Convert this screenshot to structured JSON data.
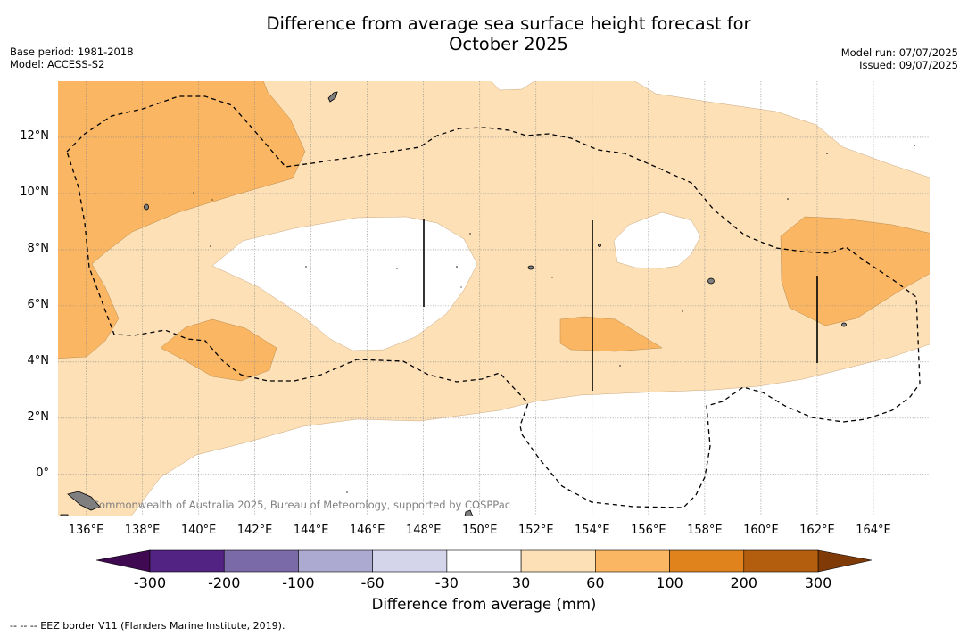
{
  "title_line1": "Difference from average sea surface height forecast for",
  "title_line2": "October 2025",
  "meta_left": {
    "base_period": "Base period: 1981-2018",
    "model": "Model: ACCESS-S2"
  },
  "meta_right": {
    "model_run": "Model run: 07/07/2025",
    "issued": "Issued: 09/07/2025"
  },
  "map": {
    "lon_range": [
      135,
      166
    ],
    "lat_range": [
      -1.5,
      14
    ],
    "x_ticks": [
      {
        "lon": 136,
        "label": "136°E"
      },
      {
        "lon": 138,
        "label": "138°E"
      },
      {
        "lon": 140,
        "label": "140°E"
      },
      {
        "lon": 142,
        "label": "142°E"
      },
      {
        "lon": 144,
        "label": "144°E"
      },
      {
        "lon": 146,
        "label": "146°E"
      },
      {
        "lon": 148,
        "label": "148°E"
      },
      {
        "lon": 150,
        "label": "150°E"
      },
      {
        "lon": 152,
        "label": "152°E"
      },
      {
        "lon": 154,
        "label": "154°E"
      },
      {
        "lon": 156,
        "label": "156°E"
      },
      {
        "lon": 158,
        "label": "158°E"
      },
      {
        "lon": 160,
        "label": "160°E"
      },
      {
        "lon": 162,
        "label": "162°E"
      },
      {
        "lon": 164,
        "label": "164°E"
      }
    ],
    "y_ticks": [
      {
        "lat": 12,
        "label": "12°N"
      },
      {
        "lat": 10,
        "label": "10°N"
      },
      {
        "lat": 8,
        "label": "8°N"
      },
      {
        "lat": 6,
        "label": "6°N"
      },
      {
        "lat": 4,
        "label": "4°N"
      },
      {
        "lat": 2,
        "label": "2°N"
      },
      {
        "lat": 0,
        "label": "0°"
      }
    ],
    "gridlines": true,
    "credit": "Commonwealth of Australia 2025, Bureau of Meteorology, supported by COSPPac",
    "colors": {
      "ocean_neutral": "#ffffff",
      "band_30_60": "#fde0b6",
      "band_60_100": "#fab662",
      "land": "#7f7f7f"
    }
  },
  "colorbar": {
    "title": "Difference from average (mm)",
    "labels": [
      "-300",
      "-200",
      "-100",
      "-60",
      "-30",
      "30",
      "60",
      "100",
      "200",
      "300"
    ],
    "colors": [
      "#532384",
      "#7a6aa8",
      "#adaad2",
      "#d4d4ea",
      "#ffffff",
      "#fde0b6",
      "#fab662",
      "#e0831c",
      "#b35e0e"
    ],
    "under_color": "#3f0a52",
    "over_color": "#7f3a08"
  },
  "footnote": "--  --  -- EEZ border V11 (Flanders Marine Institute, 2019)."
}
